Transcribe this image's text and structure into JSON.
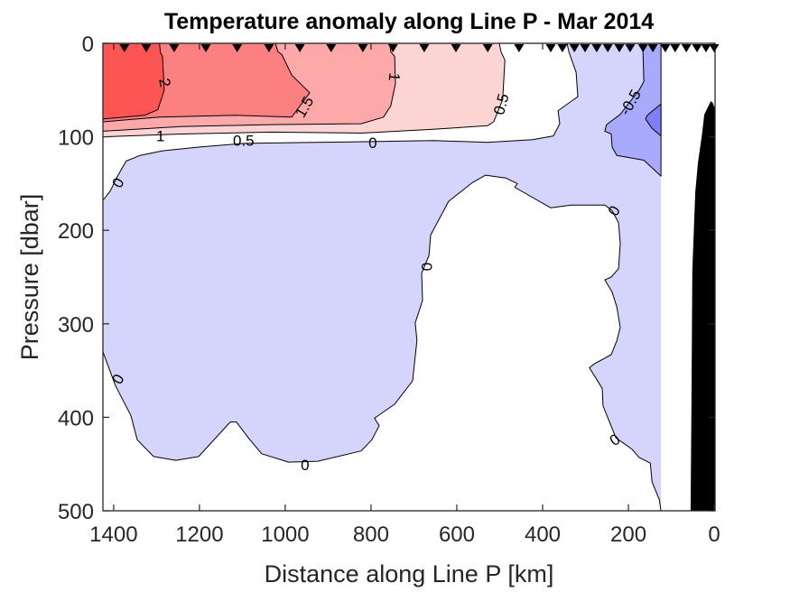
{
  "chart_data": {
    "type": "contourf",
    "title": "Temperature anomaly along Line P - Mar 2014",
    "xlabel": "Distance along Line P [km]",
    "ylabel": "Pressure [dbar]",
    "xlim": [
      -2,
      1425
    ],
    "ylim": [
      0,
      500
    ],
    "x_reversed": true,
    "y_reversed": true,
    "x_ticks": [
      1400,
      1200,
      1000,
      800,
      600,
      400,
      200,
      0
    ],
    "x_tick_labels": [
      "1400",
      "1200",
      "1000",
      "800",
      "600",
      "400",
      "200",
      "0"
    ],
    "y_ticks": [
      0,
      100,
      200,
      300,
      400,
      500
    ],
    "y_tick_labels": [
      "0",
      "100",
      "200",
      "300",
      "400",
      "500"
    ],
    "data_extent_km": [
      124,
      1425
    ],
    "stations_km": [
      1375,
      1324,
      1259,
      1185,
      1112,
      1038,
      966,
      893,
      819,
      749,
      676,
      602,
      528,
      455,
      381,
      354,
      326,
      301,
      274,
      248,
      221,
      196,
      166,
      143,
      114,
      91,
      65,
      40,
      19,
      0
    ],
    "levels": [
      {
        "name": "below-0",
        "range": [
          -0.5,
          0
        ],
        "color": "#d4d4fd"
      },
      {
        "name": "0-to-0.5",
        "range": [
          0,
          0.5
        ],
        "color": "#ffffff"
      },
      {
        "name": "0.5-to-1",
        "range": [
          0.5,
          1
        ],
        "color": "#fdd4d4"
      },
      {
        "name": "1-to-1.5",
        "range": [
          1,
          1.5
        ],
        "color": "#fda9a9"
      },
      {
        "name": "1.5-to-2",
        "range": [
          1.5,
          2
        ],
        "color": "#fd8080"
      },
      {
        "name": "above-2",
        "range": [
          2,
          2.5
        ],
        "color": "#fd5454"
      },
      {
        "name": "-1-to-minus-0.5",
        "range": [
          -1,
          -0.5
        ],
        "color": "#a9a9fd"
      },
      {
        "name": "below-minus-1",
        "range": [
          -1.5,
          -1
        ],
        "color": "#7f7ffd"
      }
    ],
    "regions": [
      {
        "level": 1,
        "points": [
          [
            1425,
            330
          ],
          [
            1396,
            366
          ],
          [
            1360,
            398
          ],
          [
            1345,
            424
          ],
          [
            1307,
            442
          ],
          [
            1255,
            446
          ],
          [
            1202,
            442
          ],
          [
            1128,
            405
          ],
          [
            1114,
            405
          ],
          [
            1086,
            422
          ],
          [
            1055,
            439
          ],
          [
            992,
            448
          ],
          [
            924,
            447
          ],
          [
            823,
            436
          ],
          [
            798,
            424
          ],
          [
            781,
            409
          ],
          [
            792,
            401
          ],
          [
            745,
            386
          ],
          [
            703,
            361
          ],
          [
            693,
            318
          ],
          [
            697,
            299
          ],
          [
            680,
            275
          ],
          [
            682,
            246
          ],
          [
            665,
            227
          ],
          [
            661,
            205
          ],
          [
            619,
            169
          ],
          [
            564,
            149
          ],
          [
            533,
            141
          ],
          [
            486,
            144
          ],
          [
            459,
            150
          ],
          [
            465,
            154
          ],
          [
            381,
            176
          ],
          [
            333,
            173
          ],
          [
            255,
            173
          ],
          [
            238,
            179
          ],
          [
            223,
            192
          ],
          [
            219,
            214
          ],
          [
            223,
            241
          ],
          [
            240,
            250
          ],
          [
            255,
            253
          ],
          [
            238,
            266
          ],
          [
            227,
            282
          ],
          [
            219,
            304
          ],
          [
            227,
            318
          ],
          [
            240,
            333
          ],
          [
            280,
            343
          ],
          [
            291,
            347
          ],
          [
            261,
            369
          ],
          [
            259,
            388
          ],
          [
            244,
            405
          ],
          [
            229,
            422
          ],
          [
            192,
            434
          ],
          [
            175,
            443
          ],
          [
            149,
            449
          ],
          [
            145,
            469
          ],
          [
            128,
            488
          ],
          [
            124,
            500
          ],
          [
            1425,
            500
          ]
        ]
      },
      {
        "level": 1,
        "points": [
          [
            1425,
            168
          ],
          [
            1408,
            158
          ],
          [
            1392,
            143
          ],
          [
            1371,
            126
          ],
          [
            1339,
            120
          ],
          [
            1286,
            115
          ],
          [
            1202,
            111
          ],
          [
            1097,
            107
          ],
          [
            928,
            106
          ],
          [
            781,
            105
          ],
          [
            655,
            104
          ],
          [
            528,
            106
          ],
          [
            423,
            103
          ],
          [
            375,
            99
          ],
          [
            360,
            86
          ],
          [
            364,
            72
          ],
          [
            318,
            57
          ],
          [
            322,
            31
          ],
          [
            339,
            9
          ],
          [
            343,
            0
          ],
          [
            1425,
            0
          ]
        ]
      },
      {
        "level": 2,
        "points": [
          [
            1425,
            100
          ],
          [
            1244,
            97
          ],
          [
            1034,
            95
          ],
          [
            823,
            96
          ],
          [
            655,
            92
          ],
          [
            528,
            88
          ],
          [
            514,
            84
          ],
          [
            493,
            60
          ],
          [
            488,
            18
          ],
          [
            497,
            9
          ],
          [
            501,
            0
          ],
          [
            1425,
            0
          ]
        ]
      },
      {
        "level": 3,
        "points": [
          [
            1425,
            94
          ],
          [
            1244,
            89
          ],
          [
            1034,
            87
          ],
          [
            823,
            86
          ],
          [
            771,
            79
          ],
          [
            754,
            67
          ],
          [
            743,
            43
          ],
          [
            745,
            14
          ],
          [
            754,
            9
          ],
          [
            756,
            0
          ],
          [
            1425,
            0
          ]
        ]
      },
      {
        "level": 4,
        "points": [
          [
            1425,
            84
          ],
          [
            1293,
            79
          ],
          [
            1118,
            77
          ],
          [
            985,
            79
          ],
          [
            943,
            53
          ],
          [
            956,
            47
          ],
          [
            985,
            34
          ],
          [
            1008,
            12
          ],
          [
            1017,
            9
          ],
          [
            1023,
            0
          ],
          [
            1425,
            0
          ]
        ]
      },
      {
        "level": 5,
        "points": [
          [
            1425,
            81
          ],
          [
            1328,
            77
          ],
          [
            1297,
            71
          ],
          [
            1282,
            50
          ],
          [
            1286,
            14
          ],
          [
            1291,
            10
          ],
          [
            1293,
            0
          ],
          [
            1425,
            0
          ]
        ]
      },
      {
        "level": 6,
        "points": [
          [
            171,
            0
          ],
          [
            166,
            9
          ],
          [
            164,
            41
          ],
          [
            175,
            50
          ],
          [
            219,
            76
          ],
          [
            251,
            87
          ],
          [
            255,
            94
          ],
          [
            240,
            97
          ],
          [
            238,
            111
          ],
          [
            227,
            120
          ],
          [
            164,
            125
          ],
          [
            124,
            142
          ],
          [
            124,
            0
          ]
        ]
      },
      {
        "level": 7,
        "points": [
          [
            124,
            65
          ],
          [
            156,
            77
          ],
          [
            160,
            81
          ],
          [
            145,
            91
          ],
          [
            124,
            99
          ]
        ]
      }
    ],
    "bathymetry": {
      "color": "#000000",
      "points": [
        [
          8,
          62
        ],
        [
          23,
          76
        ],
        [
          29,
          99
        ],
        [
          38,
          128
        ],
        [
          44,
          159
        ],
        [
          51,
          243
        ],
        [
          53,
          379
        ],
        [
          55,
          500
        ],
        [
          -2,
          500
        ],
        [
          -2,
          70
        ],
        [
          4,
          63
        ]
      ]
    },
    "contour_labels": [
      {
        "text": "2",
        "km": 1280,
        "dbar": 42
      },
      {
        "text": "1.5",
        "km": 956,
        "dbar": 68
      },
      {
        "text": "1",
        "km": 745,
        "dbar": 36
      },
      {
        "text": "1",
        "km": 1291,
        "dbar": 99
      },
      {
        "text": "0.5",
        "km": 1097,
        "dbar": 104
      },
      {
        "text": "0.5",
        "km": 497,
        "dbar": 65
      },
      {
        "text": "0",
        "km": 796,
        "dbar": 106
      },
      {
        "text": "-0.5",
        "km": 196,
        "dbar": 63
      },
      {
        "text": "0",
        "km": 1390,
        "dbar": 149
      },
      {
        "text": "0",
        "km": 1390,
        "dbar": 359
      },
      {
        "text": "0",
        "km": 954,
        "dbar": 451
      },
      {
        "text": "0",
        "km": 669,
        "dbar": 239
      },
      {
        "text": "0",
        "km": 234,
        "dbar": 179
      },
      {
        "text": "0",
        "km": 232,
        "dbar": 424
      }
    ]
  }
}
